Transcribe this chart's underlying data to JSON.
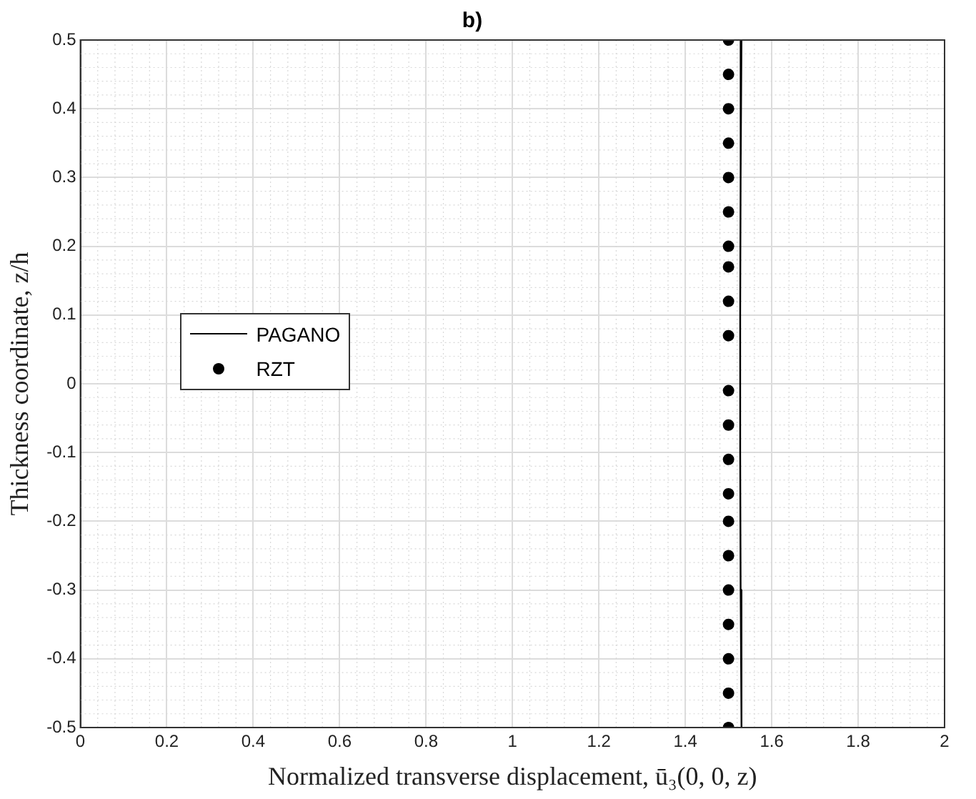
{
  "chart_data": {
    "type": "line",
    "title": "b)",
    "xlabel": "Normalized transverse displacement, ū₃(0, 0, z)",
    "ylabel": "Thickness coordinate, z/h",
    "xlim": [
      0,
      2
    ],
    "xticks": [
      0,
      0.2,
      0.4,
      0.6,
      0.8,
      1,
      1.2,
      1.4,
      1.6,
      1.8,
      2
    ],
    "ylim": [
      -0.5,
      0.5
    ],
    "yticks": [
      -0.5,
      -0.4,
      -0.3,
      -0.2,
      -0.1,
      0,
      0.1,
      0.2,
      0.3,
      0.4,
      0.5
    ],
    "grid": true,
    "legend": "left",
    "series": [
      {
        "name": "PAGANO",
        "type": "line",
        "color": "#000000",
        "marker": "none",
        "line_style": "solid",
        "x": [
          1.53,
          1.528,
          1.527,
          1.527,
          1.528,
          1.53
        ],
        "values": [
          0.5,
          0.3,
          0.1,
          -0.1,
          -0.3,
          -0.5
        ]
      },
      {
        "name": "RZT",
        "type": "scatter",
        "color": "#000000",
        "marker": "circle",
        "x": [
          1.5,
          1.5,
          1.5,
          1.5,
          1.5,
          1.5,
          1.5,
          1.5,
          1.5,
          1.5,
          1.5,
          1.5,
          1.5,
          1.5,
          1.5,
          1.5,
          1.5,
          1.5,
          1.5,
          1.5,
          1.5
        ],
        "values": [
          0.5,
          0.45,
          0.4,
          0.35,
          0.3,
          0.25,
          0.2,
          0.17,
          0.12,
          0.07,
          -0.01,
          -0.06,
          -0.11,
          -0.16,
          -0.2,
          -0.25,
          -0.3,
          -0.35,
          -0.4,
          -0.45,
          -0.5
        ]
      }
    ]
  }
}
